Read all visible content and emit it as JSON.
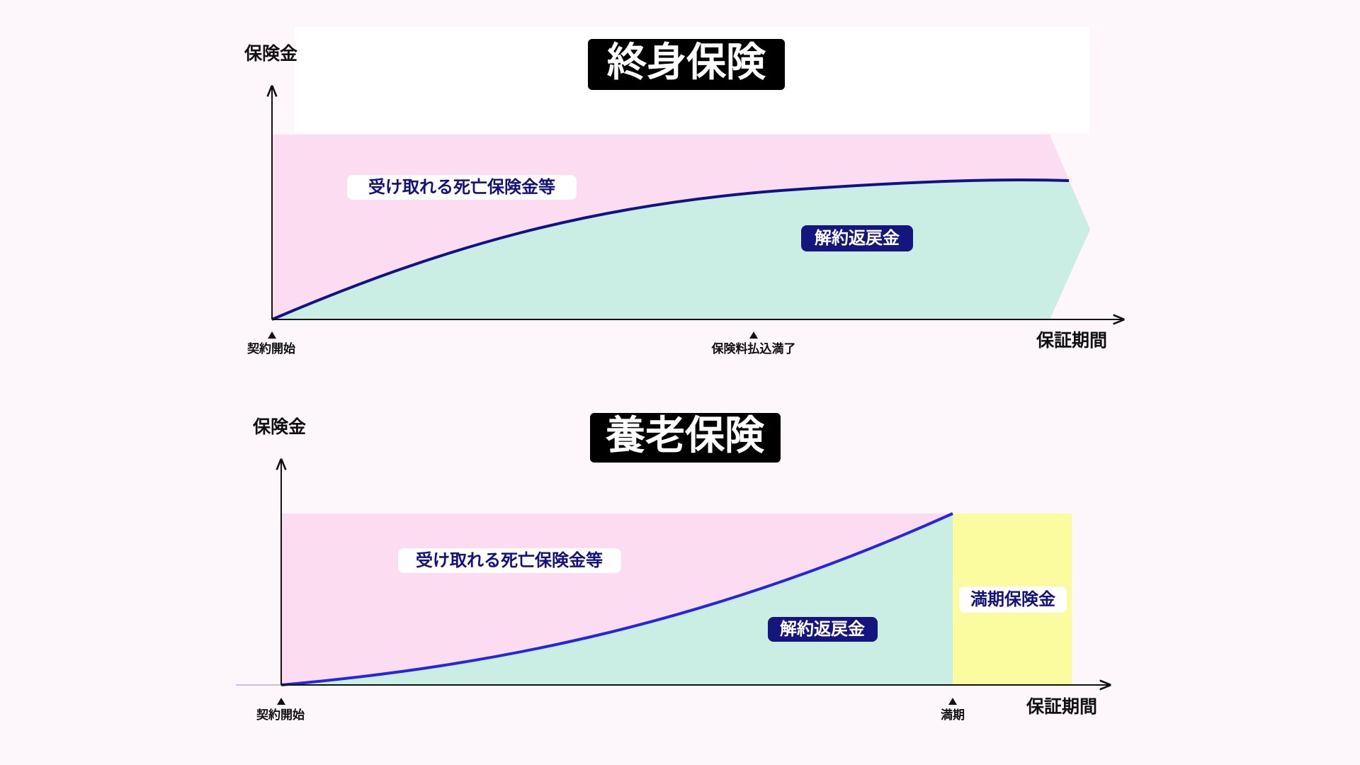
{
  "panels": [
    {
      "title": "終身保険",
      "y_axis_label": "保険金",
      "x_axis_label": "保証期間",
      "tick_labels": [
        "契約開始",
        "保険料払込満了"
      ],
      "area_labels": [
        "受け取れる死亡保険金等",
        "解約返戻金"
      ]
    },
    {
      "title": "養老保険",
      "y_axis_label": "保険金",
      "x_axis_label": "保証期間",
      "tick_labels": [
        "契約開始",
        "満期"
      ],
      "area_labels": [
        "受け取れる死亡保険金等",
        "解約返戻金",
        "満期保険金"
      ]
    }
  ]
}
